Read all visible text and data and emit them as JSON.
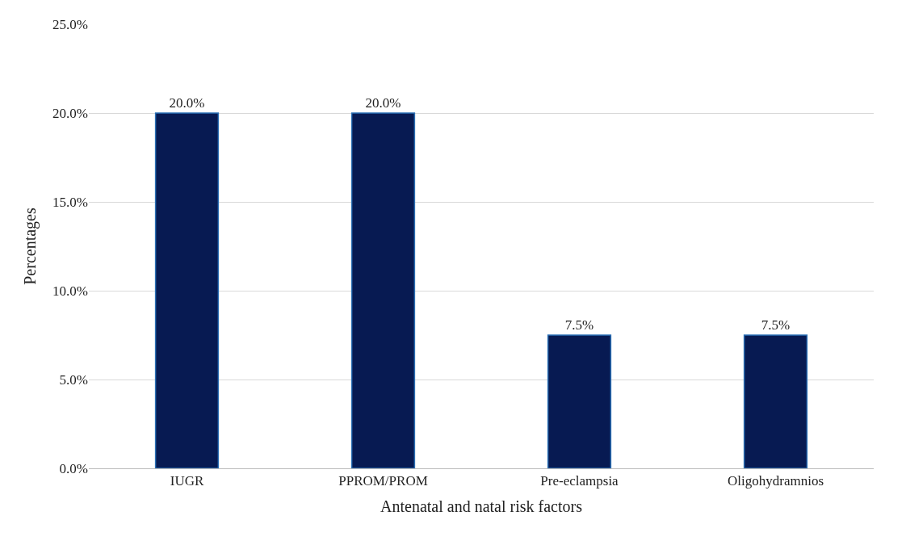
{
  "chart_data": {
    "type": "bar",
    "xlabel": "Antenatal and natal risk factors",
    "ylabel": "Percentages",
    "categories": [
      "IUGR",
      "PPROM/PROM",
      "Pre-eclampsia",
      "Oligohydramnios"
    ],
    "values": [
      20,
      20,
      7.5,
      7.5
    ],
    "value_labels": [
      "20.0%",
      "20.0%",
      "7.5%",
      "7.5%"
    ],
    "color": "#071a52",
    "ylim": [
      0,
      25
    ],
    "yticks": [
      {
        "value": 0,
        "label": "0.0%"
      },
      {
        "value": 5,
        "label": "5.0%"
      },
      {
        "value": 10,
        "label": "10.0%"
      },
      {
        "value": 15,
        "label": "15.0%"
      },
      {
        "value": 20,
        "label": "20.0%"
      },
      {
        "value": 25,
        "label": "25.0%"
      }
    ],
    "grid": "y"
  }
}
